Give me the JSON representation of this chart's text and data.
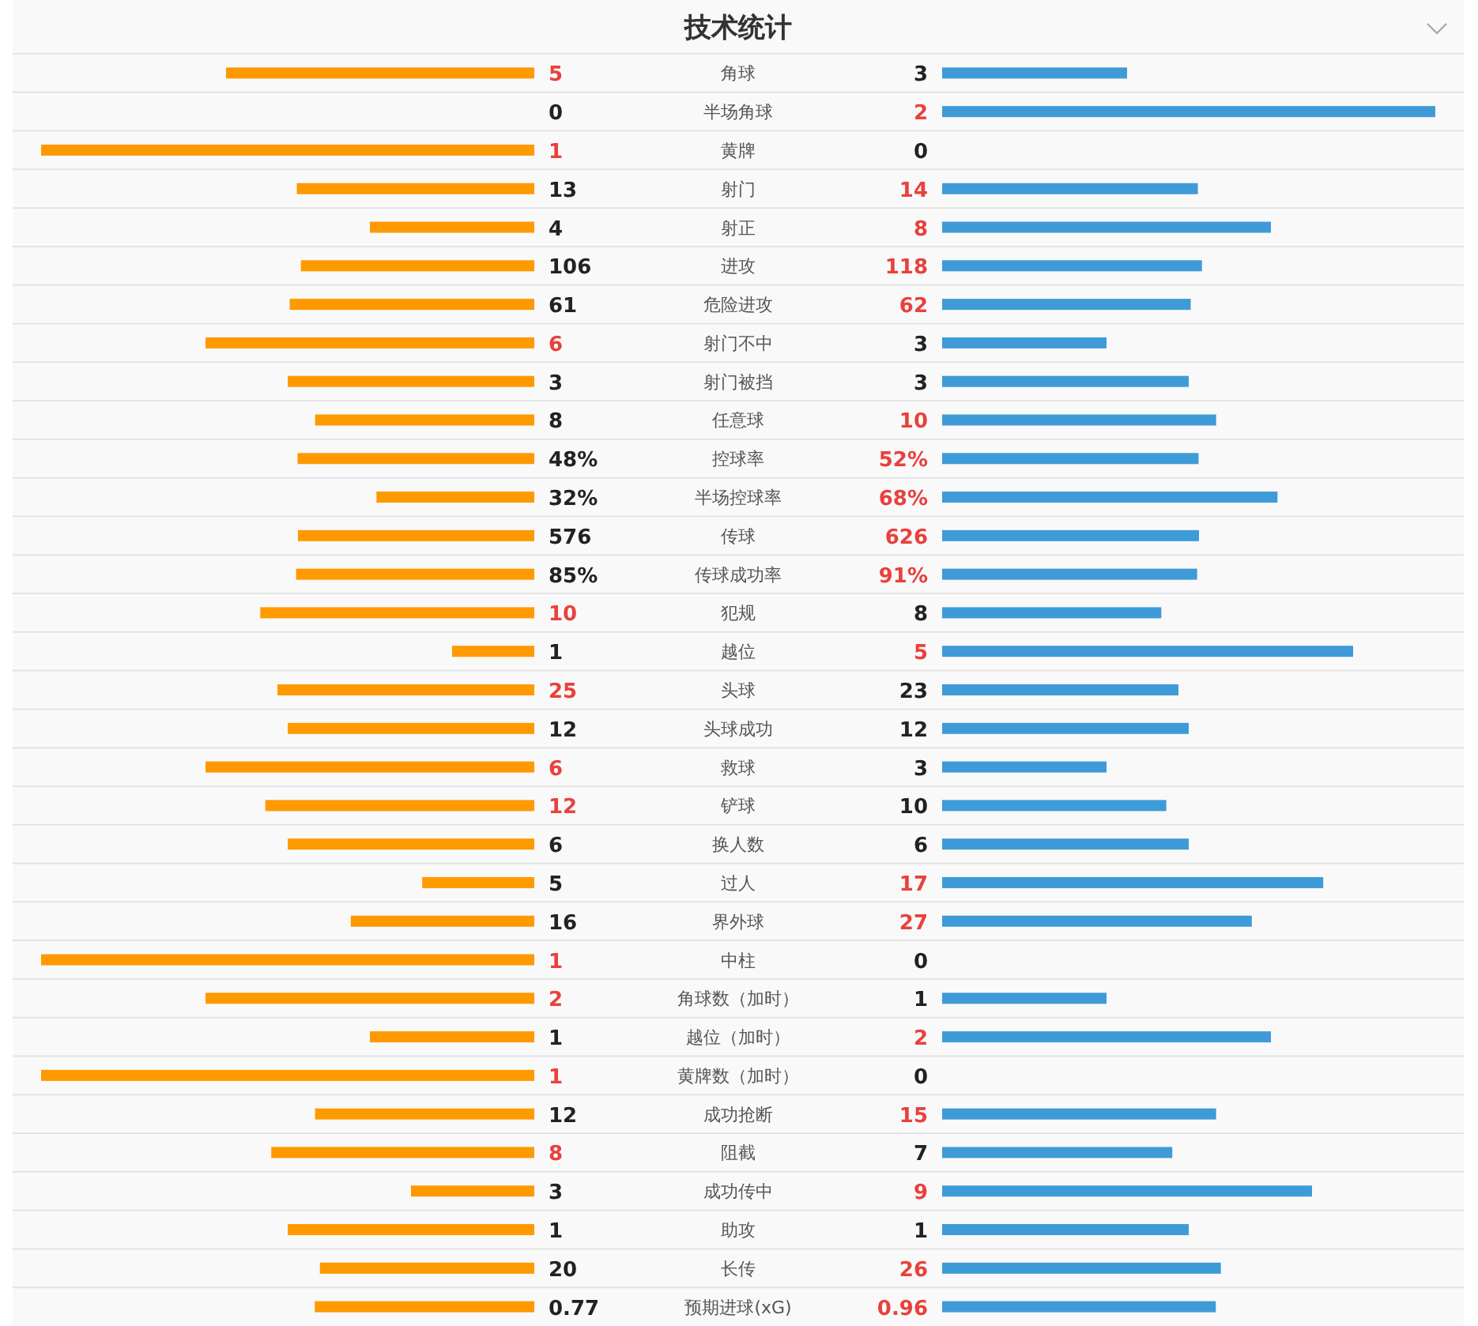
{
  "chart_data": {
    "type": "other",
    "title": "技术统计",
    "categories": [
      "角球",
      "半场角球",
      "黄牌",
      "射门",
      "射正",
      "进攻",
      "危险进攻",
      "射门不中",
      "射门被挡",
      "任意球",
      "控球率",
      "半场控球率",
      "传球",
      "传球成功率",
      "犯规",
      "越位",
      "头球",
      "头球成功",
      "救球",
      "铲球",
      "换人数",
      "过人",
      "界外球",
      "中柱",
      "角球数（加时）",
      "越位（加时）",
      "黄牌数（加时）",
      "成功抢断",
      "阻截",
      "成功传中",
      "助攻",
      "长传",
      "预期进球(xG)"
    ],
    "series": [
      {
        "color": "#ff9900",
        "values": [
          5,
          0,
          1,
          13,
          4,
          106,
          61,
          6,
          3,
          8,
          48,
          32,
          576,
          85,
          10,
          1,
          25,
          12,
          6,
          12,
          6,
          5,
          16,
          1,
          2,
          1,
          1,
          12,
          8,
          3,
          1,
          20,
          0.77
        ],
        "value_labels": [
          "5",
          "0",
          "1",
          "13",
          "4",
          "106",
          "61",
          "6",
          "3",
          "8",
          "48%",
          "32%",
          "576",
          "85%",
          "10",
          "1",
          "25",
          "12",
          "6",
          "12",
          "6",
          "5",
          "16",
          "1",
          "2",
          "1",
          "1",
          "12",
          "8",
          "3",
          "1",
          "20",
          "0.77"
        ]
      },
      {
        "color": "#3e9bd8",
        "values": [
          3,
          2,
          0,
          14,
          8,
          118,
          62,
          3,
          3,
          10,
          52,
          68,
          626,
          91,
          8,
          5,
          23,
          12,
          3,
          10,
          6,
          17,
          27,
          0,
          1,
          2,
          0,
          15,
          7,
          9,
          1,
          26,
          0.96
        ],
        "value_labels": [
          "3",
          "2",
          "0",
          "14",
          "8",
          "118",
          "62",
          "3",
          "3",
          "10",
          "52%",
          "68%",
          "626",
          "91%",
          "8",
          "5",
          "23",
          "12",
          "3",
          "10",
          "6",
          "17",
          "27",
          "0",
          "1",
          "2",
          "0",
          "15",
          "7",
          "9",
          "1",
          "26",
          "0.96"
        ]
      }
    ]
  }
}
